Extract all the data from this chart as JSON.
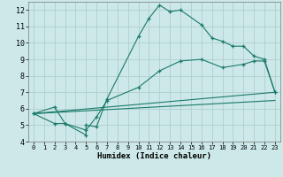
{
  "xlabel": "Humidex (Indice chaleur)",
  "xlim": [
    -0.5,
    23.5
  ],
  "ylim": [
    4,
    12.5
  ],
  "yticks": [
    4,
    5,
    6,
    7,
    8,
    9,
    10,
    11,
    12
  ],
  "xticks": [
    0,
    1,
    2,
    3,
    4,
    5,
    6,
    7,
    8,
    9,
    10,
    11,
    12,
    13,
    14,
    15,
    16,
    17,
    18,
    19,
    20,
    21,
    22,
    23
  ],
  "bg_color": "#cce8e8",
  "grid_color": "#b0d0cc",
  "line_color": "#1a7a6a",
  "lines": [
    {
      "x": [
        0,
        2,
        3,
        5,
        5,
        6,
        7,
        10,
        11,
        12,
        13,
        14,
        16,
        17,
        18,
        19,
        20,
        21,
        22,
        23
      ],
      "y": [
        5.7,
        6.1,
        5.1,
        4.4,
        5.0,
        4.9,
        6.6,
        10.4,
        11.5,
        12.3,
        11.9,
        12.0,
        11.1,
        10.3,
        10.1,
        9.8,
        9.8,
        9.2,
        9.0,
        7.0
      ],
      "marker": "+"
    },
    {
      "x": [
        0,
        2,
        3,
        5,
        6,
        7,
        10,
        12,
        14,
        16,
        18,
        20,
        21,
        22,
        23
      ],
      "y": [
        5.7,
        5.1,
        5.1,
        4.7,
        5.5,
        6.5,
        7.3,
        8.3,
        8.9,
        9.0,
        8.5,
        8.7,
        8.9,
        8.9,
        7.0
      ],
      "marker": "+"
    },
    {
      "x": [
        0,
        23
      ],
      "y": [
        5.7,
        7.0
      ],
      "marker": null
    },
    {
      "x": [
        0,
        23
      ],
      "y": [
        5.7,
        6.5
      ],
      "marker": null
    }
  ]
}
